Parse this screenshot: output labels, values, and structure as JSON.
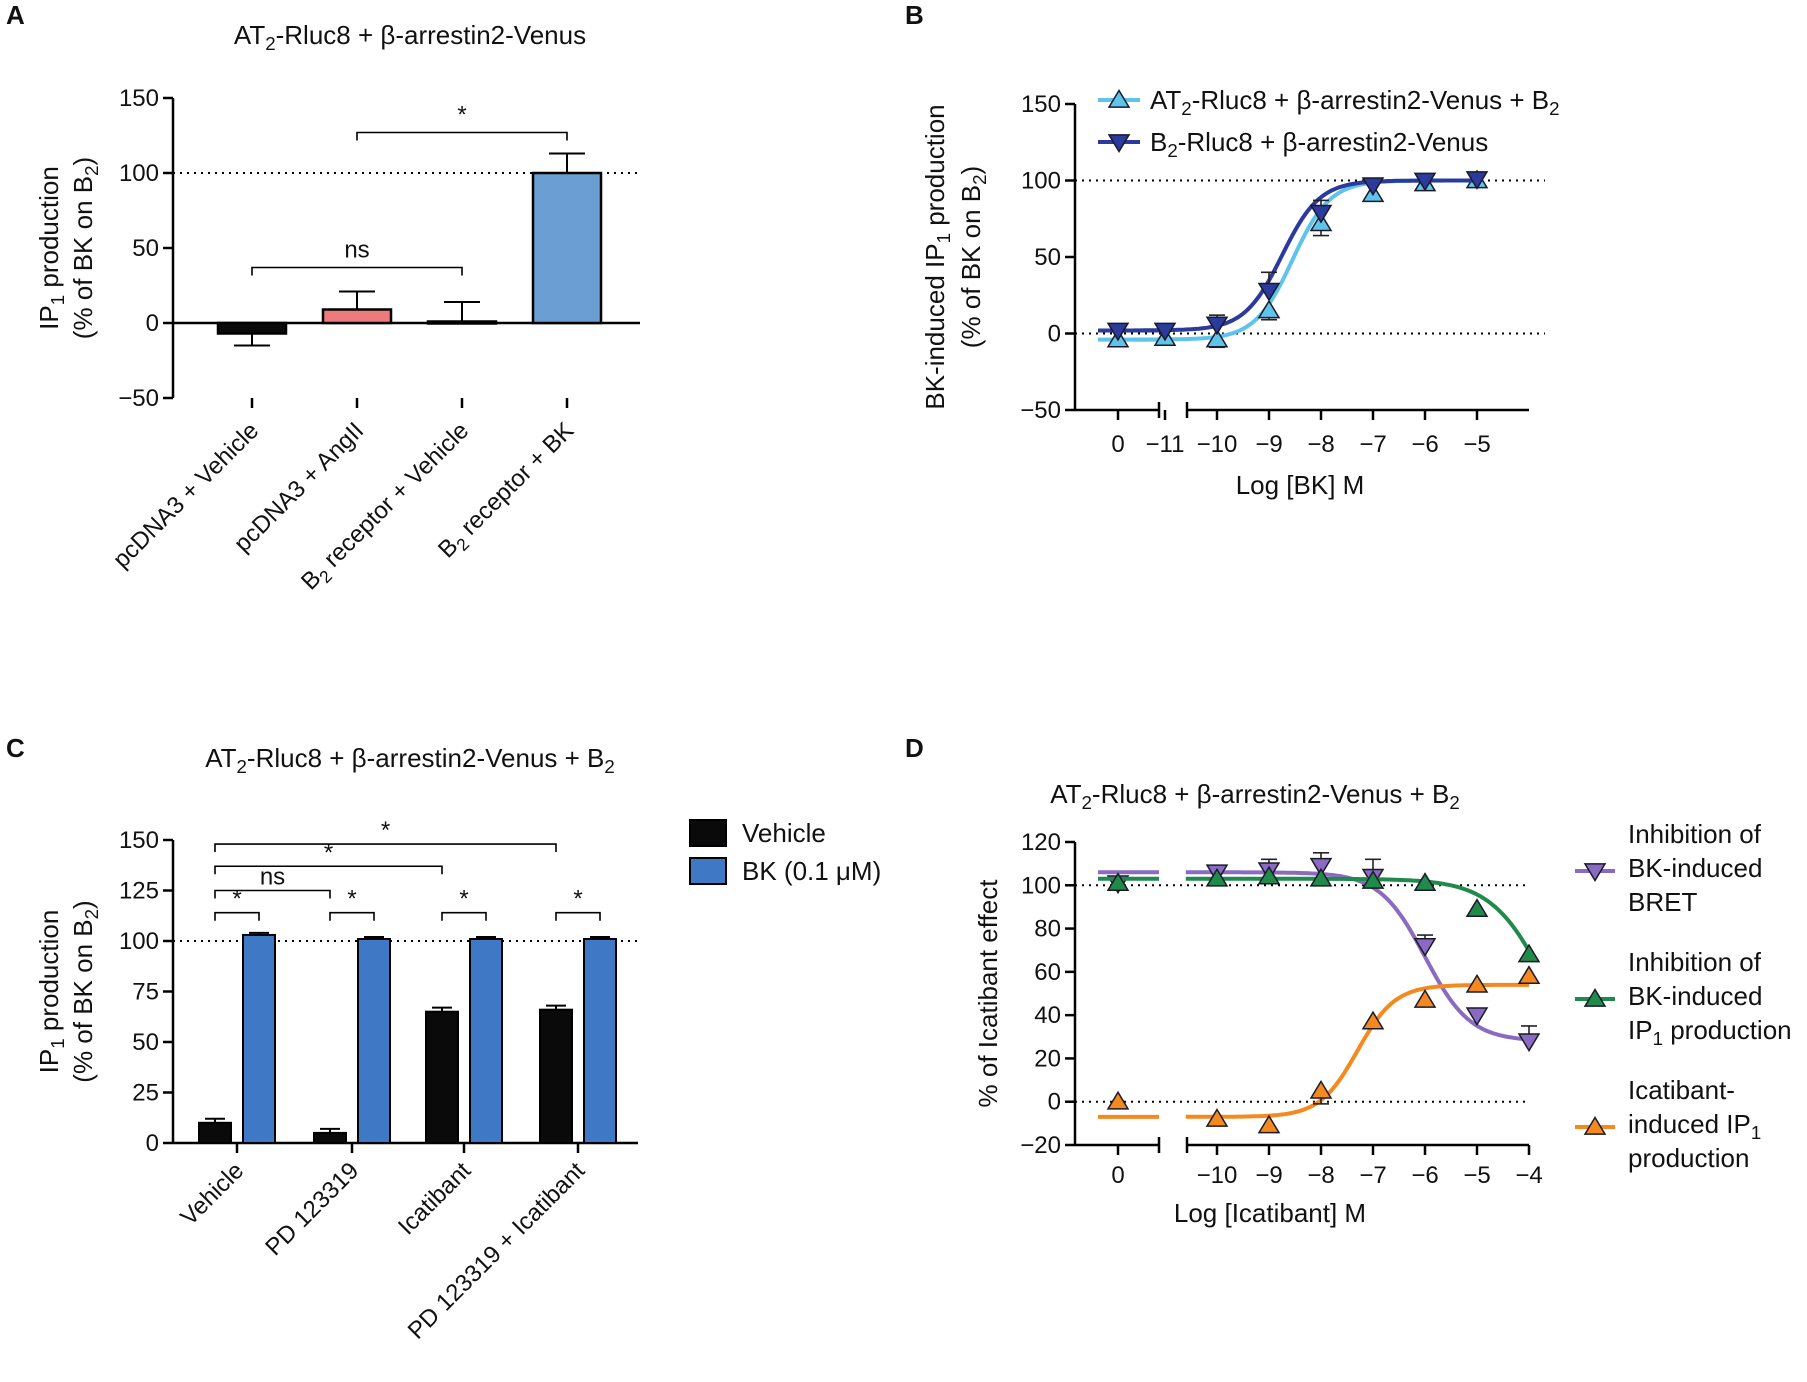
{
  "colors": {
    "black": "#0a0a0a",
    "salmon": "#ef7a7c",
    "steelblue": "#6b9fd4",
    "bk_blue": "#3f78c4",
    "lightblue": "#5ec4ea",
    "darkblue": "#2b3a9c",
    "purple": "#8b6bc1",
    "green": "#1f8a4a",
    "orange": "#f4891f"
  },
  "chart_data": [
    {
      "panel": "A",
      "type": "bar",
      "title_parts": [
        "AT",
        "2",
        "-Rluc8 + β-arrestin2-Venus"
      ],
      "ylabel_line1": [
        "IP",
        "1",
        " production"
      ],
      "ylabel_line2": [
        "(% of BK on B",
        "2",
        ")"
      ],
      "ylim": [
        -50,
        150
      ],
      "yticks": [
        -50,
        0,
        50,
        100,
        150
      ],
      "ytick_labels": [
        "−50",
        "0",
        "50",
        "100",
        "150"
      ],
      "reference_line": 100,
      "categories": [
        [
          "pcDNA3 + Vehicle"
        ],
        [
          "pcDNA3 + AngII"
        ],
        [
          "B",
          "2",
          " receptor + Vehicle"
        ],
        [
          "B",
          "2",
          " receptor + BK"
        ]
      ],
      "values": [
        -7,
        9,
        1,
        100
      ],
      "errors": [
        8,
        12,
        13,
        13
      ],
      "bar_colors": [
        "#0a0a0a",
        "#ef7a7c",
        "#f2f2f2",
        "#6b9fd4"
      ],
      "significance": [
        {
          "from": 0,
          "to": 2,
          "label": "ns",
          "y": 37
        },
        {
          "from": 1,
          "to": 3,
          "label": "*",
          "y": 127
        }
      ]
    },
    {
      "panel": "B",
      "type": "line",
      "ylabel_line1": [
        "BK-induced IP",
        "1",
        " production"
      ],
      "ylabel_line2": [
        "(% of BK on B",
        "2",
        ")"
      ],
      "xlabel": "Log [BK] M",
      "ylim": [
        -50,
        150
      ],
      "yticks": [
        -50,
        0,
        50,
        100,
        150
      ],
      "ytick_labels": [
        "−50",
        "0",
        "50",
        "100",
        "150"
      ],
      "xticks": [
        0,
        -11,
        -10,
        -9,
        -8,
        -7,
        -6,
        -5
      ],
      "xtick_labels": [
        "0",
        "−11",
        "−10",
        "−9",
        "−8",
        "−7",
        "−6",
        "−5"
      ],
      "reference_lines": [
        0,
        100
      ],
      "series": [
        {
          "name_parts": [
            "AT",
            "2",
            "-Rluc8 + β-arrestin2-Venus + B",
            "2"
          ],
          "color": "#5ec4ea",
          "marker": "triangle-up",
          "x": [
            -11,
            -10,
            -9,
            -8,
            -7,
            -6,
            -5
          ],
          "y": [
            -3,
            -4,
            15,
            72,
            91,
            98,
            100
          ],
          "err": [
            4,
            5,
            6,
            8,
            4,
            3,
            3
          ],
          "x0_value": -4,
          "fit": {
            "bottom": -4,
            "top": 100,
            "logec50": -8.55,
            "hill": 1.2
          }
        },
        {
          "name_parts": [
            "B",
            "2",
            "-Rluc8 + β-arrestin2-Venus"
          ],
          "color": "#2b3a9c",
          "marker": "triangle-down",
          "x": [
            -11,
            -10,
            -9,
            -8,
            -7,
            -6,
            -5
          ],
          "y": [
            2,
            6,
            28,
            79,
            97,
            100,
            101
          ],
          "err": [
            4,
            6,
            12,
            8,
            4,
            3,
            3
          ],
          "x0_value": 2,
          "fit": {
            "bottom": 2,
            "top": 100,
            "logec50": -8.75,
            "hill": 1.2
          }
        }
      ]
    },
    {
      "panel": "C",
      "type": "bar",
      "title_parts": [
        "AT",
        "2",
        "-Rluc8 + β-arrestin2-Venus + B",
        "2"
      ],
      "ylabel_line1": [
        "IP",
        "1",
        " production"
      ],
      "ylabel_line2": [
        "(% of BK on B",
        "2",
        ")"
      ],
      "ylim": [
        0,
        150
      ],
      "yticks": [
        0,
        25,
        50,
        75,
        100,
        125,
        150
      ],
      "ytick_labels": [
        "0",
        "25",
        "50",
        "75",
        "100",
        "125",
        "150"
      ],
      "reference_line": 100,
      "categories": [
        "Vehicle",
        "PD 123319",
        "Icatibant",
        "PD 123319 + Icatibant"
      ],
      "series": [
        {
          "name": "Vehicle",
          "color": "#0a0a0a",
          "values": [
            10,
            5,
            65,
            66
          ],
          "err": [
            2,
            2,
            2,
            2
          ]
        },
        {
          "name": "BK (0.1 μM)",
          "color": "#3f78c4",
          "values": [
            103,
            101,
            101,
            101
          ],
          "err": [
            1,
            1,
            1,
            1
          ]
        }
      ],
      "significance": [
        {
          "from": [
            0,
            0
          ],
          "to": [
            0,
            1
          ],
          "label": "*",
          "y": 114
        },
        {
          "from": [
            1,
            0
          ],
          "to": [
            1,
            1
          ],
          "label": "*",
          "y": 114
        },
        {
          "from": [
            2,
            0
          ],
          "to": [
            2,
            1
          ],
          "label": "*",
          "y": 114
        },
        {
          "from": [
            3,
            0
          ],
          "to": [
            3,
            1
          ],
          "label": "*",
          "y": 114
        },
        {
          "from": [
            0,
            0
          ],
          "to": [
            1,
            0
          ],
          "label": "ns",
          "y": 125
        },
        {
          "from": [
            0,
            0
          ],
          "to": [
            2,
            0
          ],
          "label": "*",
          "y": 137
        },
        {
          "from": [
            0,
            0
          ],
          "to": [
            3,
            0
          ],
          "label": "*",
          "y": 148
        }
      ]
    },
    {
      "panel": "D",
      "type": "line",
      "title_parts": [
        "AT",
        "2",
        "-Rluc8 + β-arrestin2-Venus + B",
        "2"
      ],
      "ylabel": "% of Icatibant effect",
      "xlabel": "Log [Icatibant] M",
      "ylim": [
        -20,
        120
      ],
      "yticks": [
        -20,
        0,
        20,
        40,
        60,
        80,
        100,
        120
      ],
      "ytick_labels": [
        "−20",
        "0",
        "20",
        "40",
        "60",
        "80",
        "100",
        "120"
      ],
      "xticks": [
        0,
        -10,
        -9,
        -8,
        -7,
        -6,
        -5,
        -4
      ],
      "xtick_labels": [
        "0",
        "−10",
        "−9",
        "−8",
        "−7",
        "−6",
        "−5",
        "−4"
      ],
      "reference_lines": [
        0,
        100
      ],
      "series": [
        {
          "name_lines": [
            [
              "Inhibition of"
            ],
            [
              "BK-induced"
            ],
            [
              "BRET"
            ]
          ],
          "color": "#8b6bc1",
          "marker": "triangle-down",
          "x": [
            -10,
            -9,
            -8,
            -7,
            -6,
            -5,
            -4
          ],
          "y": [
            106,
            107,
            109,
            104,
            72,
            40,
            28
          ],
          "err": [
            3,
            5,
            6,
            8,
            5,
            3,
            7
          ],
          "x0_value": 101,
          "fit": {
            "bottom": 28,
            "top": 106,
            "logec50": -6.0,
            "hill": 1.0
          }
        },
        {
          "name_lines": [
            [
              "Inhibition of"
            ],
            [
              "BK-induced"
            ],
            [
              "IP",
              "1",
              " production"
            ]
          ],
          "color": "#1f8a4a",
          "marker": "triangle-up",
          "x": [
            -10,
            -9,
            -8,
            -7,
            -6,
            -5,
            -4
          ],
          "y": [
            103,
            104,
            103,
            102,
            101,
            89,
            68
          ],
          "err": [
            3,
            3,
            3,
            3,
            2,
            2,
            2
          ],
          "x0_value": 101,
          "fit": {
            "bottom": 0,
            "top": 103,
            "logec50": -3.6,
            "hill": 0.8
          }
        },
        {
          "name_lines": [
            [
              "Icatibant-"
            ],
            [
              "induced IP",
              "1"
            ],
            [
              "production"
            ]
          ],
          "color": "#f4891f",
          "marker": "triangle-up",
          "x": [
            -10,
            -9,
            -8,
            -7,
            -6,
            -5,
            -4
          ],
          "y": [
            -8,
            -11,
            5,
            37,
            47,
            54,
            58
          ],
          "err": [
            2,
            2,
            6,
            3,
            2,
            2,
            2
          ],
          "x0_value": 0,
          "fit": {
            "bottom": -7,
            "top": 54,
            "logec50": -7.3,
            "hill": 1.2
          }
        }
      ]
    }
  ]
}
